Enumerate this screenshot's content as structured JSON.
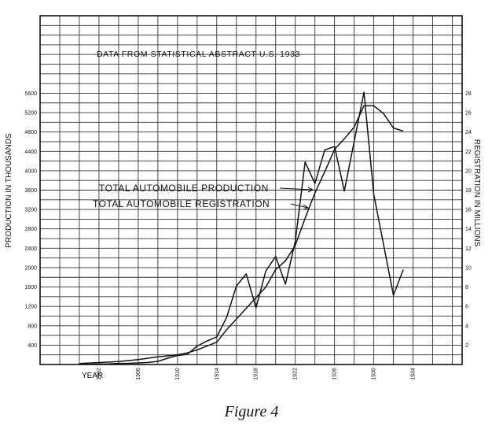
{
  "chart_data": {
    "type": "line",
    "title": "DATA FROM STATISTICAL ABSTRACT U.S. 1933",
    "caption": "Figure 4",
    "xlabel": "YEAR",
    "ylabel": "PRODUCTION IN THOUSANDS",
    "y2label": "REGISTRATION IN MILLIONS",
    "xlim": [
      1896,
      1939
    ],
    "ylim": [
      0,
      7200
    ],
    "y2lim": [
      0,
      36
    ],
    "grid": true,
    "x_ticks": [
      "1902",
      "1906",
      "1910",
      "1914",
      "1918",
      "1922",
      "1926",
      "1930",
      "1934"
    ],
    "y_ticks": [
      "400",
      "800",
      "1200",
      "1600",
      "2000",
      "2400",
      "2800",
      "3200",
      "3600",
      "4000",
      "4400",
      "4800",
      "5200",
      "5600"
    ],
    "y2_ticks": [
      "2",
      "4",
      "6",
      "8",
      "10",
      "12",
      "14",
      "16",
      "18",
      "20",
      "22",
      "24",
      "26",
      "28"
    ],
    "series": [
      {
        "name": "TOTAL AUTOMOBILE PRODUCTION",
        "axis": "left",
        "x": [
          1900,
          1901,
          1902,
          1903,
          1904,
          1905,
          1906,
          1907,
          1908,
          1909,
          1910,
          1911,
          1912,
          1913,
          1914,
          1915,
          1916,
          1917,
          1918,
          1919,
          1920,
          1921,
          1922,
          1923,
          1924,
          1925,
          1926,
          1927,
          1928,
          1929,
          1930,
          1931,
          1932,
          1933
        ],
        "y": [
          4,
          7,
          9,
          11,
          22,
          24,
          33,
          43,
          65,
          130,
          187,
          210,
          380,
          485,
          570,
          970,
          1620,
          1870,
          1170,
          1930,
          2230,
          1660,
          2540,
          4180,
          3740,
          4430,
          4500,
          3580,
          4600,
          5620,
          3510,
          2470,
          1430,
          1960
        ]
      },
      {
        "name": "TOTAL AUTOMOBILE REGISTRATION",
        "axis": "right",
        "x": [
          1900,
          1902,
          1904,
          1906,
          1908,
          1910,
          1911,
          1912,
          1913,
          1914,
          1915,
          1916,
          1917,
          1918,
          1919,
          1920,
          1921,
          1922,
          1923,
          1924,
          1925,
          1926,
          1927,
          1928,
          1929,
          1930,
          1931,
          1932,
          1933
        ],
        "y": [
          0.1,
          0.2,
          0.3,
          0.5,
          0.8,
          1.0,
          1.2,
          1.5,
          1.9,
          2.3,
          3.6,
          4.7,
          5.8,
          6.9,
          8.0,
          9.8,
          10.7,
          12.3,
          15.1,
          17.7,
          19.9,
          22.2,
          23.3,
          24.5,
          26.7,
          26.7,
          25.9,
          24.4,
          24.1
        ]
      }
    ]
  }
}
